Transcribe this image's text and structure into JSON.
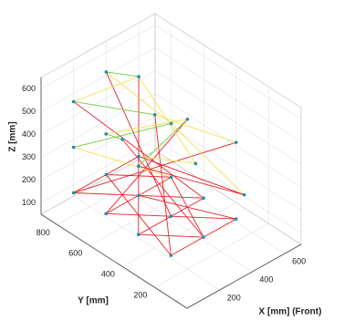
{
  "chart_data": {
    "type": "line3d",
    "xlabel": "X [mm] (Front)",
    "ylabel": "Y [mm]",
    "zlabel": "Z [mm]",
    "xlim": [
      0,
      700
    ],
    "ylim": [
      0,
      900
    ],
    "zlim": [
      50,
      650
    ],
    "xticks": [
      200,
      400,
      600
    ],
    "yticks": [
      200,
      400,
      600,
      800
    ],
    "zticks": [
      100,
      200,
      300,
      400,
      500,
      600
    ],
    "grid": true,
    "series": [
      {
        "color": "#e8202a",
        "x": [
          100,
          300,
          null,
          300,
          500,
          null,
          100,
          300,
          null,
          300,
          500,
          null,
          100,
          300,
          null,
          300,
          500,
          null,
          100,
          500,
          null,
          100,
          500,
          null,
          100,
          500,
          null,
          100,
          500,
          null,
          500,
          650,
          null,
          500,
          300,
          null,
          300,
          100,
          null,
          300,
          500,
          null,
          300,
          300,
          null,
          300,
          100,
          null,
          500,
          100,
          null,
          500,
          100,
          null,
          100,
          500,
          null,
          100,
          650,
          null,
          600,
          100,
          null,
          300,
          300
        ],
        "y": [
          800,
          600,
          null,
          800,
          600,
          null,
          600,
          400,
          null,
          600,
          400,
          null,
          400,
          200,
          null,
          400,
          200,
          null,
          800,
          800,
          null,
          600,
          600,
          null,
          400,
          400,
          null,
          200,
          200,
          null,
          800,
          300,
          null,
          600,
          200,
          null,
          800,
          200,
          null,
          600,
          200,
          null,
          800,
          400,
          null,
          500,
          200,
          null,
          500,
          600,
          null,
          800,
          400,
          null,
          800,
          400,
          null,
          400,
          300,
          null,
          300,
          800,
          null,
          700,
          200
        ],
        "z": [
          150,
          150,
          null,
          150,
          150,
          null,
          150,
          150,
          null,
          150,
          150,
          null,
          150,
          150,
          null,
          150,
          150,
          null,
          150,
          150,
          null,
          150,
          150,
          null,
          150,
          150,
          null,
          150,
          150,
          null,
          150,
          150,
          null,
          150,
          150,
          null,
          150,
          150,
          null,
          150,
          150,
          null,
          600,
          150,
          null,
          550,
          150,
          null,
          450,
          150,
          null,
          500,
          150,
          null,
          550,
          150,
          null,
          450,
          150,
          null,
          400,
          150,
          null,
          350,
          150
        ]
      },
      {
        "color": "#f5e050",
        "x": [
          100,
          500,
          null,
          300,
          600,
          null,
          500,
          650,
          null,
          100,
          500,
          null,
          100,
          500,
          null,
          600,
          650,
          null,
          300,
          600,
          null,
          500,
          650
        ],
        "y": [
          800,
          800,
          null,
          800,
          700,
          null,
          800,
          600,
          null,
          600,
          500,
          null,
          800,
          600,
          null,
          700,
          300,
          null,
          500,
          300,
          null,
          800,
          600
        ],
        "z": [
          550,
          500,
          null,
          600,
          300,
          null,
          500,
          150,
          null,
          500,
          450,
          null,
          350,
          150,
          null,
          300,
          150,
          null,
          550,
          400,
          null,
          150,
          150
        ]
      },
      {
        "color": "#6cc93a",
        "x": [
          100,
          300,
          null,
          100,
          300,
          null,
          100,
          500,
          null,
          100,
          600,
          null,
          300,
          500
        ],
        "y": [
          800,
          500,
          null,
          600,
          700,
          null,
          400,
          500,
          null,
          800,
          700,
          null,
          800,
          800
        ],
        "z": [
          550,
          550,
          null,
          500,
          350,
          null,
          450,
          450,
          null,
          350,
          300,
          null,
          600,
          500
        ]
      },
      {
        "color": "#1f8fb0",
        "marker": true,
        "x": [
          100,
          300,
          500,
          100,
          300,
          500,
          100,
          300,
          500,
          100,
          300,
          500,
          650,
          650,
          100,
          100,
          100,
          300,
          300,
          500,
          500,
          600,
          100,
          300,
          600
        ],
        "y": [
          800,
          800,
          800,
          600,
          600,
          600,
          400,
          400,
          400,
          200,
          200,
          200,
          300,
          600,
          800,
          600,
          400,
          800,
          500,
          800,
          500,
          300,
          800,
          700,
          700
        ],
        "z": [
          150,
          150,
          150,
          150,
          150,
          150,
          150,
          150,
          150,
          150,
          150,
          150,
          150,
          150,
          550,
          500,
          450,
          600,
          550,
          500,
          450,
          400,
          350,
          350,
          300
        ]
      }
    ]
  }
}
